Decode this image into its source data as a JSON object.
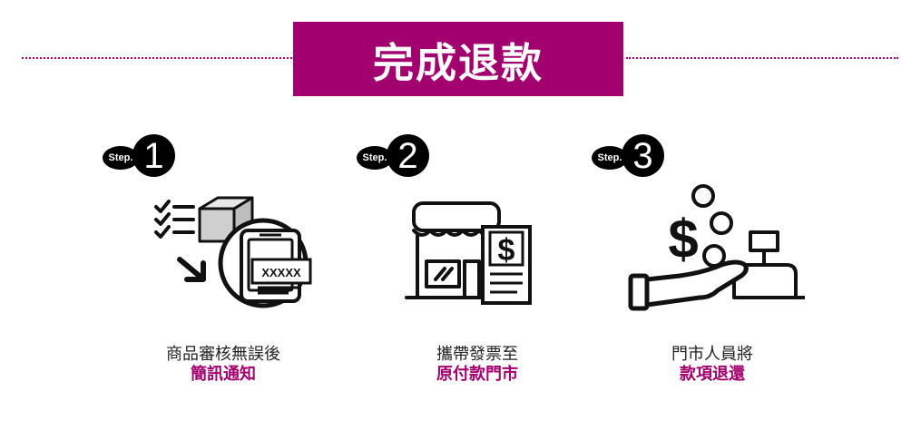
{
  "title": "完成退款",
  "colors": {
    "accent": "#a1006e",
    "text": "#222222",
    "icon": "#111111"
  },
  "steps": [
    {
      "badge_label": "Step.",
      "number": "1",
      "icon": "checklist-box-phone-icon",
      "icon_text": "XXXXX",
      "line1": "商品審核無誤後",
      "line2": "簡訊通知"
    },
    {
      "badge_label": "Step.",
      "number": "2",
      "icon": "store-invoice-icon",
      "icon_text": "$",
      "line1": "攜帶發票至",
      "line2": "原付款門市"
    },
    {
      "badge_label": "Step.",
      "number": "3",
      "icon": "hand-money-register-icon",
      "icon_text": "$",
      "line1": "門市人員將",
      "line2": "款項退還"
    }
  ]
}
